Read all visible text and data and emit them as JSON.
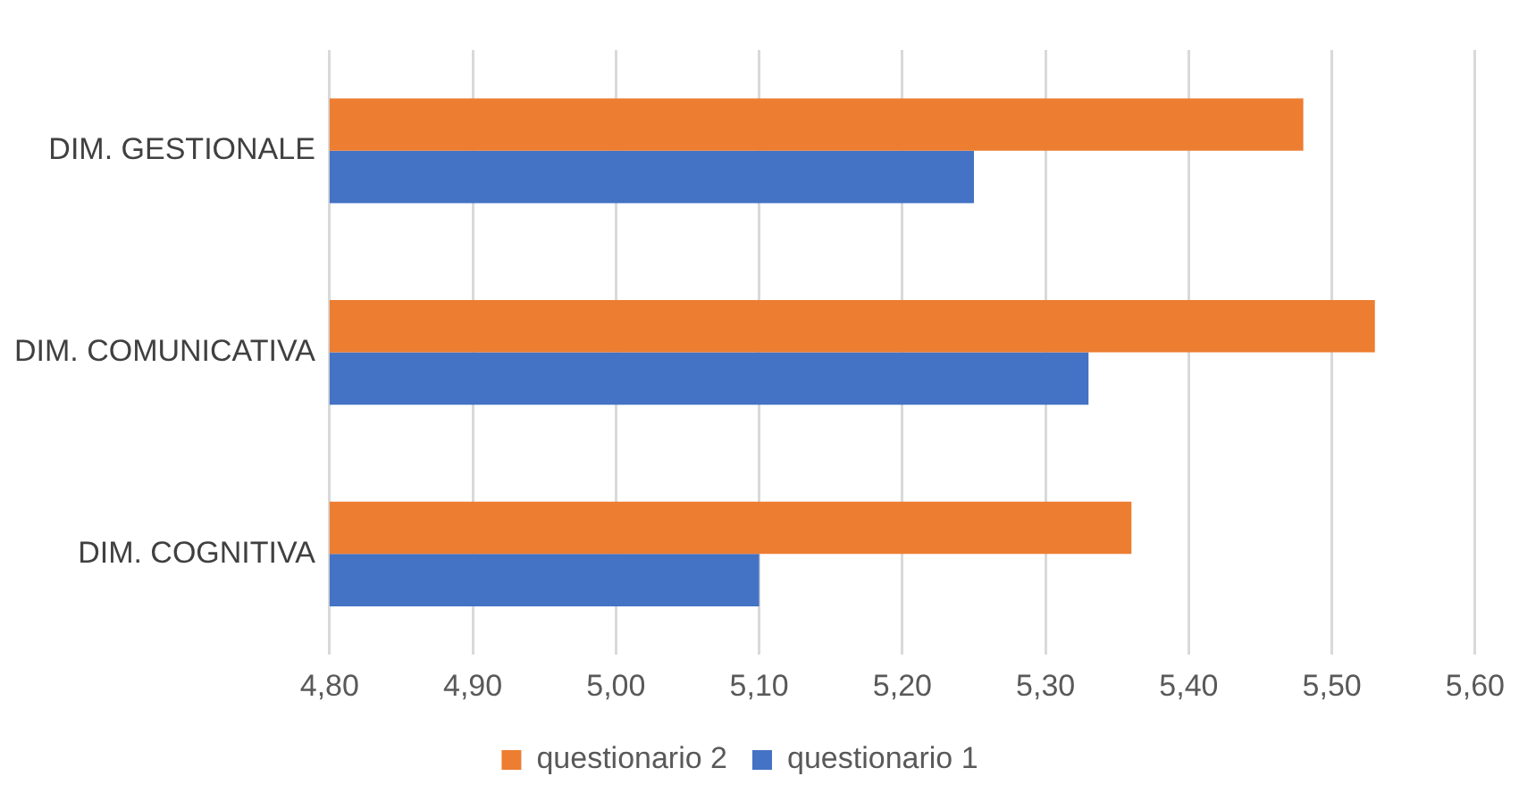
{
  "chart_data": {
    "type": "bar",
    "orientation": "horizontal",
    "categories": [
      "DIM. GESTIONALE",
      "DIM. COMUNICATIVA",
      "DIM. COGNITIVA"
    ],
    "series": [
      {
        "name": "questionario 2",
        "color": "#ed7d31",
        "values": [
          5.48,
          5.53,
          5.36
        ]
      },
      {
        "name": "questionario 1",
        "color": "#4472c4",
        "values": [
          5.25,
          5.33,
          5.1
        ]
      }
    ],
    "xlim": [
      4.8,
      5.6
    ],
    "xticks": [
      {
        "value": 4.8,
        "label": "4,80"
      },
      {
        "value": 4.9,
        "label": "4,90"
      },
      {
        "value": 5.0,
        "label": "5,00"
      },
      {
        "value": 5.1,
        "label": "5,10"
      },
      {
        "value": 5.2,
        "label": "5,20"
      },
      {
        "value": 5.3,
        "label": "5,30"
      },
      {
        "value": 5.4,
        "label": "5,40"
      },
      {
        "value": 5.5,
        "label": "5,50"
      },
      {
        "value": 5.6,
        "label": "5,60"
      }
    ],
    "grid": "x",
    "legend": "bottom"
  }
}
